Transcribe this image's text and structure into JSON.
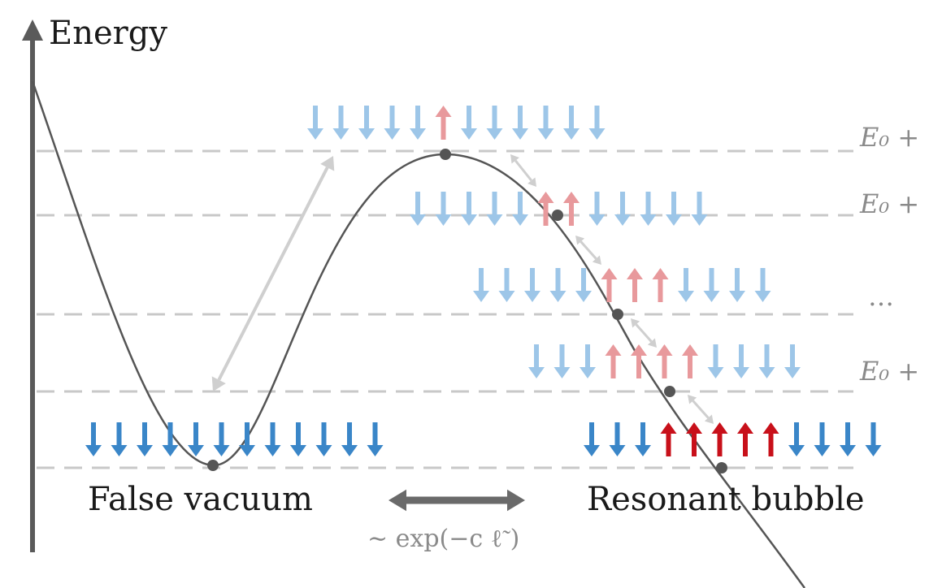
{
  "axis": {
    "label": "Energy"
  },
  "labels": {
    "false_vacuum": "False vacuum",
    "resonant_bubble": "Resonant bubble",
    "tunneling_rate": "∼ exp(−c ℓ̃ )"
  },
  "levels": [
    {
      "label": "E₀ +"
    },
    {
      "label": "E₀ +"
    },
    {
      "label": "…"
    },
    {
      "label": "E₀ +"
    }
  ],
  "colors": {
    "down_strong": "#3a86c8",
    "down_light": "#9dc6e8",
    "up_strong": "#c8101a",
    "up_light": "#e8999c",
    "curve": "#555555",
    "dash": "#c8c8c8",
    "axis": "#5a5a5a",
    "guide_arrow": "#cfcfcf"
  },
  "spin_rows": [
    {
      "name": "false-vacuum-spins",
      "pattern": "dddddddddddd",
      "style": "strong"
    },
    {
      "name": "level-top-spins",
      "pattern": "dddddudddddd",
      "style": "light"
    },
    {
      "name": "level-2-spins",
      "pattern": "ddddduuddddd",
      "style": "light"
    },
    {
      "name": "level-3-spins",
      "pattern": "ddddduuudddd",
      "style": "light"
    },
    {
      "name": "level-4-spins",
      "pattern": "ddduuuudddd",
      "style": "light"
    },
    {
      "name": "resonant-bubble-spins",
      "pattern": "ddduuuuudddd",
      "style": "strong"
    }
  ]
}
